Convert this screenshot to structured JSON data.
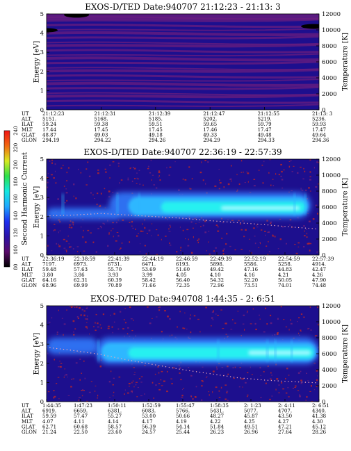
{
  "figure": {
    "colors": {
      "background_low": "#1d0f8e",
      "band_purple": "#6a1e7e",
      "noise_red": "#b02430",
      "medium_blue": "#2f6ff0",
      "light_blue": "#2fb7ff",
      "cyan": "#28f0f0",
      "hole": "#000000",
      "temp_dots": "#f2a8b8"
    },
    "colorbar": {
      "label": "Second Harmonic Current",
      "ticks": [
        "80",
        "100",
        "120",
        "140",
        "160",
        "180",
        "200",
        "220",
        "240"
      ],
      "stops": [
        "#000000",
        "#5a0a6a",
        "#2c13a8",
        "#1c2ef0",
        "#1ea8ff",
        "#14e8e0",
        "#2ee04a",
        "#d8ea20",
        "#f26812",
        "#f01414"
      ]
    }
  },
  "chart_data": [
    {
      "type": "heatmap",
      "title": "EXOS-D/TED   Date:940707  21:12:23 - 21:13: 3",
      "ylabel": "Energy [eV]",
      "y2label": "Temperature [K]",
      "ylim": [
        0,
        5
      ],
      "y2lim": [
        0,
        12000
      ],
      "yticks": [
        "0",
        "1",
        "2",
        "3",
        "4",
        "5"
      ],
      "y2ticks": [
        "0",
        "2000",
        "4000",
        "6000",
        "8000",
        "10000",
        "12000"
      ],
      "orbit_labels": [
        "UT",
        "ALT",
        "ILAT",
        "MLT",
        "GLAT",
        "GLON"
      ],
      "orbit_columns": [
        [
          "21:12:23",
          "5151.",
          "59.24",
          "17.44",
          "48.87",
          "294.19"
        ],
        [
          "21:12:31",
          "5168.",
          "59.38",
          "17.45",
          "49.03",
          "294.22"
        ],
        [
          "21:12:39",
          "5185.",
          "59.51",
          "17.45",
          "49.18",
          "294.26"
        ],
        [
          "21:12:47",
          "5202.",
          "59.65",
          "17.46",
          "49.33",
          "294.29"
        ],
        [
          "21:12:55",
          "5219.",
          "59.79",
          "17.47",
          "49.48",
          "294.33"
        ],
        [
          "21:13: 3",
          "5236.",
          "59.93",
          "17.47",
          "49.64",
          "294.36"
        ]
      ],
      "noise_level": 0,
      "blobs": [],
      "temperature": []
    },
    {
      "type": "heatmap",
      "title": "EXOS-D/TED   Date:940707  22:36:19 - 22:57:39",
      "ylabel": "Energy [eV]",
      "y2label": "Temperature [K]",
      "ylim": [
        0,
        5
      ],
      "y2lim": [
        0,
        12000
      ],
      "yticks": [
        "0",
        "1",
        "2",
        "3",
        "4",
        "5"
      ],
      "y2ticks": [
        "0",
        "2000",
        "4000",
        "6000",
        "8000",
        "10000",
        "12000"
      ],
      "orbit_labels": [
        "UT",
        "ALT",
        "ILAT",
        "MLT",
        "GLAT",
        "GLON"
      ],
      "orbit_columns": [
        [
          "22:36:19",
          "7197.",
          "59.48",
          "3.80",
          "64.16",
          "68.96"
        ],
        [
          "22:38:59",
          "6973.",
          "57.63",
          "3.86",
          "62.31",
          "69.99"
        ],
        [
          "22:41:39",
          "6731.",
          "55.70",
          "3.93",
          "60.39",
          "70.89"
        ],
        [
          "22:44:19",
          "6471.",
          "53.69",
          "3.99",
          "58.42",
          "71.66"
        ],
        [
          "22:46:59",
          "6193.",
          "51.60",
          "4.05",
          "56.40",
          "72.35"
        ],
        [
          "22:49:39",
          "5898.",
          "49.42",
          "4.10",
          "54.32",
          "72.96"
        ],
        [
          "22:52:19",
          "5586.",
          "47.16",
          "4.16",
          "52.20",
          "73.51"
        ],
        [
          "22:54:59",
          "5258.",
          "44.83",
          "4.21",
          "50.05",
          "74.01"
        ],
        [
          "22:57:39",
          "4914.",
          "42.47",
          "4.26",
          "47.90",
          "74.48"
        ]
      ],
      "noise_level": 1,
      "blobs": [
        {
          "x0": 0.0,
          "x1": 0.27,
          "e": 2.15,
          "h": 0.6,
          "level": 1
        },
        {
          "x0": 0.23,
          "x1": 0.97,
          "e": 2.6,
          "h": 1.35,
          "level": 1
        },
        {
          "x0": 0.3,
          "x1": 0.96,
          "e": 2.55,
          "h": 0.95,
          "level": 2
        },
        {
          "x0": 0.42,
          "x1": 0.95,
          "e": 2.5,
          "h": 0.55,
          "level": 3
        },
        {
          "x0": 0.64,
          "x1": 0.93,
          "e": 2.45,
          "h": 0.22,
          "level": 4
        }
      ],
      "temperature": [
        [
          0.0,
          4900
        ],
        [
          0.1,
          5000
        ],
        [
          0.2,
          5200
        ],
        [
          0.3,
          5000
        ],
        [
          0.4,
          4800
        ],
        [
          0.5,
          4600
        ],
        [
          0.6,
          4300
        ],
        [
          0.7,
          4050
        ],
        [
          0.8,
          3800
        ],
        [
          0.9,
          3500
        ],
        [
          1.0,
          3250
        ]
      ]
    },
    {
      "type": "heatmap",
      "title": "EXOS-D/TED   Date:940708  1:44:35 - 2: 6:51",
      "ylabel": "Energy [eV]",
      "y2label": "Temperature [K]",
      "ylim": [
        0,
        5
      ],
      "y2lim": [
        0,
        12000
      ],
      "yticks": [
        "0",
        "1",
        "2",
        "3",
        "4",
        "5"
      ],
      "y2ticks": [
        "0",
        "2000",
        "4000",
        "6000",
        "8000",
        "10000",
        "12000"
      ],
      "orbit_labels": [
        "UT",
        "ALT",
        "ILAT",
        "MLT",
        "GLAT",
        "GLON"
      ],
      "orbit_columns": [
        [
          "1:44:35",
          "6919.",
          "59.59",
          "4.07",
          "62.71",
          "21.24"
        ],
        [
          "1:47:23",
          "6659.",
          "57.47",
          "4.11",
          "60.68",
          "22.50"
        ],
        [
          "1:50:11",
          "6381.",
          "55.27",
          "4.14",
          "58.57",
          "23.60"
        ],
        [
          "1:52:59",
          "6083.",
          "53.00",
          "4.17",
          "56.39",
          "24.57"
        ],
        [
          "1:55:47",
          "5766.",
          "50.66",
          "4.19",
          "54.14",
          "25.44"
        ],
        [
          "1:58:35",
          "5431.",
          "48.27",
          "4.22",
          "51.84",
          "26.23"
        ],
        [
          "2: 1:23",
          "5077.",
          "45.87",
          "4.25",
          "49.51",
          "26.96"
        ],
        [
          "2: 4:11",
          "4707.",
          "43.50",
          "4.27",
          "47.21",
          "27.64"
        ],
        [
          "2: 6:51",
          "4340.",
          "41.38",
          "4.30",
          "45.12",
          "28.26"
        ]
      ],
      "noise_level": 2,
      "blobs": [
        {
          "x0": 0.0,
          "x1": 0.19,
          "e": 2.9,
          "h": 0.85,
          "level": 1
        },
        {
          "x0": 0.18,
          "x1": 1.0,
          "e": 2.65,
          "h": 1.4,
          "level": 1
        },
        {
          "x0": 0.2,
          "x1": 0.99,
          "e": 2.6,
          "h": 0.95,
          "level": 2
        },
        {
          "x0": 0.3,
          "x1": 0.98,
          "e": 2.55,
          "h": 0.55,
          "level": 3
        },
        {
          "x0": 0.74,
          "x1": 0.97,
          "e": 2.55,
          "h": 0.25,
          "level": 4
        }
      ],
      "temperature": [
        [
          0.0,
          6800
        ],
        [
          0.1,
          6400
        ],
        [
          0.2,
          5900
        ],
        [
          0.3,
          5200
        ],
        [
          0.4,
          4600
        ],
        [
          0.5,
          4000
        ],
        [
          0.6,
          3500
        ],
        [
          0.7,
          3000
        ],
        [
          0.8,
          2700
        ],
        [
          0.9,
          2500
        ],
        [
          1.0,
          2350
        ]
      ]
    }
  ]
}
